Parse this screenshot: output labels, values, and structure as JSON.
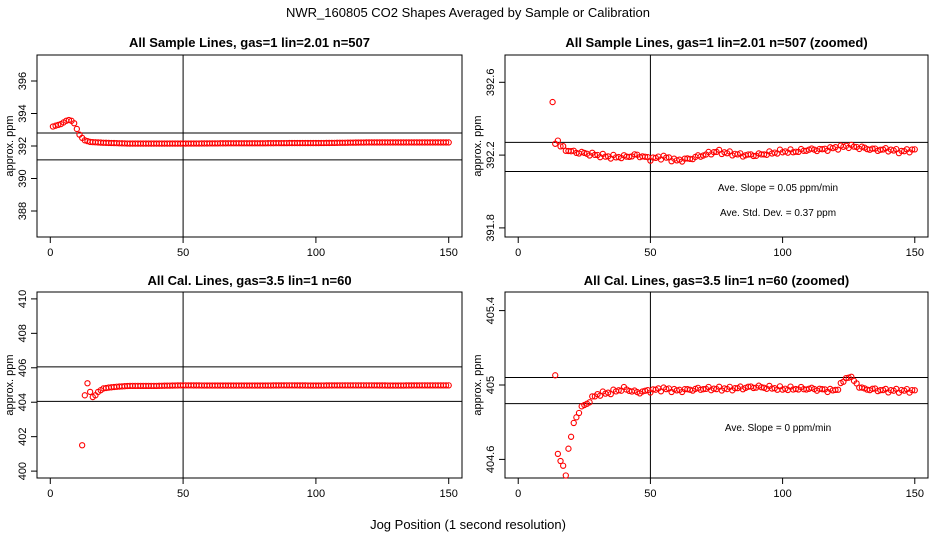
{
  "main_title": "NWR_160805  CO2 Shapes Averaged by Sample or Calibration",
  "x_axis_label": "Jog Position (1 second resolution)",
  "chart_data": [
    {
      "type": "scatter",
      "title": "All Sample Lines, gas=1 lin=2.01 n=507",
      "ylabel": "approx. ppm",
      "xlim": [
        -5,
        155
      ],
      "ylim": [
        386.4,
        397.6
      ],
      "x_ticks": [
        0,
        50,
        100,
        150
      ],
      "y_ticks": [
        388,
        390,
        392,
        394,
        396
      ],
      "vline_x": 50,
      "hlines": [
        392.8,
        391.15
      ],
      "annotations": [],
      "series": [
        {
          "x_start": 1,
          "x_end": 150,
          "points": [
            [
              1,
              393.2
            ],
            [
              2,
              393.25
            ],
            [
              3,
              393.3
            ],
            [
              4,
              393.35
            ],
            [
              5,
              393.45
            ],
            [
              6,
              393.55
            ],
            [
              7,
              393.6
            ],
            [
              8,
              393.55
            ],
            [
              9,
              393.4
            ],
            [
              10,
              393.05
            ],
            [
              11,
              392.7
            ],
            [
              12,
              392.5
            ],
            [
              13,
              392.35
            ],
            [
              14,
              392.3
            ],
            [
              15,
              392.25
            ],
            [
              20,
              392.2
            ],
            [
              30,
              392.15
            ],
            [
              40,
              392.15
            ],
            [
              50,
              392.15
            ],
            [
              60,
              392.16
            ],
            [
              70,
              392.17
            ],
            [
              80,
              392.17
            ],
            [
              90,
              392.18
            ],
            [
              100,
              392.18
            ],
            [
              110,
              392.2
            ],
            [
              120,
              392.22
            ],
            [
              130,
              392.22
            ],
            [
              140,
              392.22
            ],
            [
              150,
              392.22
            ]
          ]
        }
      ]
    },
    {
      "type": "scatter",
      "title": "All Sample Lines, gas=1 lin=2.01 n=507 (zoomed)",
      "ylabel": "approx. ppm",
      "xlim": [
        -5,
        155
      ],
      "ylim": [
        391.75,
        392.75
      ],
      "x_ticks": [
        0,
        50,
        100,
        150
      ],
      "y_ticks": [
        391.8,
        392.2,
        392.6
      ],
      "vline_x": 50,
      "hlines": [
        392.27,
        392.11
      ],
      "annotations": [
        "Ave. Slope =  0.05  ppm/min",
        "Ave. Std. Dev. =  0.37  ppm"
      ],
      "series": [
        {
          "x_start": 13,
          "x_end": 150,
          "points": [
            [
              13,
              392.48
            ],
            [
              14,
              392.27
            ],
            [
              15,
              392.28
            ],
            [
              16,
              392.25
            ],
            [
              17,
              392.24
            ],
            [
              18,
              392.23
            ],
            [
              20,
              392.22
            ],
            [
              25,
              392.21
            ],
            [
              30,
              392.2
            ],
            [
              35,
              392.19
            ],
            [
              40,
              392.19
            ],
            [
              45,
              392.2
            ],
            [
              50,
              392.18
            ],
            [
              55,
              392.19
            ],
            [
              60,
              392.17
            ],
            [
              65,
              392.18
            ],
            [
              70,
              392.2
            ],
            [
              75,
              392.22
            ],
            [
              80,
              392.21
            ],
            [
              85,
              392.2
            ],
            [
              90,
              392.2
            ],
            [
              95,
              392.21
            ],
            [
              100,
              392.22
            ],
            [
              105,
              392.22
            ],
            [
              110,
              392.23
            ],
            [
              115,
              392.23
            ],
            [
              120,
              392.24
            ],
            [
              125,
              392.25
            ],
            [
              130,
              392.24
            ],
            [
              135,
              392.23
            ],
            [
              140,
              392.23
            ],
            [
              145,
              392.22
            ],
            [
              150,
              392.23
            ]
          ]
        }
      ]
    },
    {
      "type": "scatter",
      "title": "All Cal. Lines, gas=3.5 lin=1 n=60",
      "ylabel": "approx. ppm",
      "xlim": [
        -5,
        155
      ],
      "ylim": [
        399.6,
        410.4
      ],
      "x_ticks": [
        0,
        50,
        100,
        150
      ],
      "y_ticks": [
        400,
        402,
        404,
        406,
        408,
        410
      ],
      "vline_x": 50,
      "hlines": [
        406.05,
        404.05
      ],
      "annotations": [],
      "series": [
        {
          "x_start": 12,
          "x_end": 150,
          "points": [
            [
              12,
              401.5
            ],
            [
              13,
              404.4
            ],
            [
              14,
              405.1
            ],
            [
              15,
              404.6
            ],
            [
              16,
              404.3
            ],
            [
              17,
              404.4
            ],
            [
              18,
              404.6
            ],
            [
              19,
              404.7
            ],
            [
              20,
              404.8
            ],
            [
              22,
              404.85
            ],
            [
              25,
              404.9
            ],
            [
              30,
              404.95
            ],
            [
              40,
              404.95
            ],
            [
              50,
              404.98
            ],
            [
              60,
              404.97
            ],
            [
              70,
              404.97
            ],
            [
              80,
              404.97
            ],
            [
              90,
              404.98
            ],
            [
              100,
              404.97
            ],
            [
              110,
              404.98
            ],
            [
              120,
              404.98
            ],
            [
              130,
              404.97
            ],
            [
              140,
              404.98
            ],
            [
              150,
              404.98
            ]
          ]
        }
      ]
    },
    {
      "type": "scatter",
      "title": "All Cal. Lines, gas=3.5 lin=1 n=60 (zoomed)",
      "ylabel": "approx. ppm",
      "xlim": [
        -5,
        155
      ],
      "ylim": [
        404.5,
        405.5
      ],
      "x_ticks": [
        0,
        50,
        100,
        150
      ],
      "y_ticks": [
        404.6,
        405.0,
        405.4
      ],
      "vline_x": 50,
      "hlines": [
        405.04,
        404.9
      ],
      "annotations": [
        "Ave. Slope =  0  ppm/min"
      ],
      "series": [
        {
          "x_start": 14,
          "x_end": 150,
          "points": [
            [
              14,
              405.06
            ],
            [
              15,
              404.63
            ],
            [
              18,
              404.52
            ],
            [
              19,
              404.66
            ],
            [
              20,
              404.72
            ],
            [
              21,
              404.79
            ],
            [
              22,
              404.83
            ],
            [
              24,
              404.88
            ],
            [
              26,
              404.9
            ],
            [
              28,
              404.93
            ],
            [
              30,
              404.95
            ],
            [
              35,
              404.96
            ],
            [
              40,
              404.98
            ],
            [
              45,
              404.96
            ],
            [
              50,
              404.97
            ],
            [
              55,
              404.98
            ],
            [
              60,
              404.97
            ],
            [
              70,
              404.98
            ],
            [
              80,
              404.98
            ],
            [
              90,
              404.99
            ],
            [
              100,
              404.98
            ],
            [
              110,
              404.98
            ],
            [
              120,
              404.97
            ],
            [
              125,
              405.05
            ],
            [
              130,
              404.98
            ],
            [
              140,
              404.97
            ],
            [
              150,
              404.97
            ]
          ]
        }
      ]
    }
  ]
}
